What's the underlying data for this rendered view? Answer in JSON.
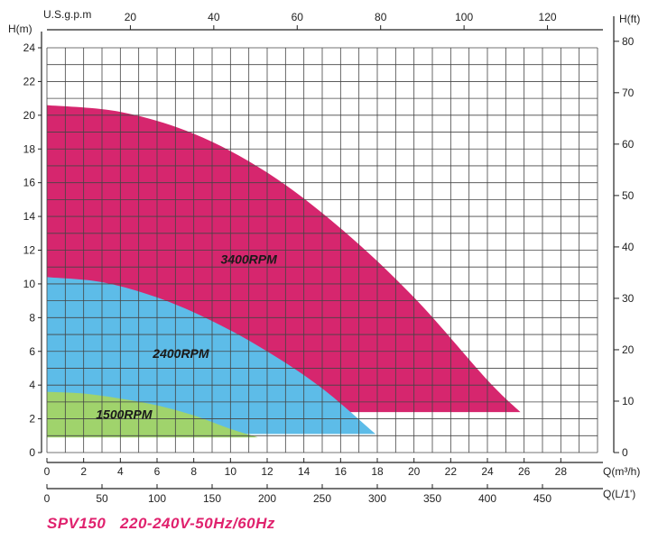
{
  "colors": {
    "curve_3400": "#d6266e",
    "curve_2400": "#5dbce8",
    "curve_1500": "#a0d36c",
    "footer": "#e0226e"
  },
  "footer": {
    "title": "SPV150   220-240V-50Hz/60Hz"
  },
  "chart_data": {
    "type": "area",
    "title": "",
    "y_left": {
      "label": "H(m)",
      "range": [
        0,
        24
      ],
      "ticks": [
        0,
        2,
        4,
        6,
        8,
        10,
        12,
        14,
        16,
        18,
        20,
        22,
        24
      ]
    },
    "y_right": {
      "label": "H(ft)",
      "range": [
        0,
        78.74
      ],
      "ticks": [
        0,
        10,
        20,
        30,
        40,
        50,
        60,
        70,
        80
      ]
    },
    "x_bottom": {
      "label": "Q(m³/h)",
      "range": [
        0,
        30
      ],
      "ticks": [
        0,
        2,
        4,
        6,
        8,
        10,
        12,
        14,
        16,
        18,
        20,
        22,
        24,
        26,
        28
      ]
    },
    "x_lps": {
      "label": "Q(L/1')",
      "range": [
        0,
        500
      ],
      "ticks": [
        0,
        50,
        100,
        150,
        200,
        250,
        300,
        350,
        400,
        450
      ]
    },
    "x_top": {
      "label": "U.S.g.p.m",
      "range": [
        0,
        132
      ],
      "ticks": [
        20,
        40,
        60,
        80,
        100,
        120
      ]
    },
    "grid": true,
    "series": [
      {
        "name": "3400RPM",
        "color": "#d6266e",
        "label_at": [
          11,
          11.2
        ],
        "x": [
          0,
          4,
          8,
          12,
          16,
          20,
          24,
          25.8
        ],
        "y": [
          20.6,
          20.2,
          18.9,
          16.6,
          13.3,
          9.2,
          4.3,
          2.4
        ]
      },
      {
        "name": "2400RPM",
        "color": "#5dbce8",
        "label_at": [
          7.3,
          5.6
        ],
        "x": [
          0,
          3,
          6,
          9,
          12,
          15,
          17.9
        ],
        "y": [
          10.4,
          10.1,
          9.2,
          7.8,
          6.0,
          3.8,
          1.1
        ]
      },
      {
        "name": "1500RPM",
        "color": "#a0d36c",
        "label_at": [
          4.2,
          2.0
        ],
        "x": [
          0,
          2,
          4,
          6,
          8,
          10,
          11.5
        ],
        "y": [
          3.6,
          3.5,
          3.2,
          2.8,
          2.2,
          1.4,
          0.9
        ]
      }
    ]
  }
}
